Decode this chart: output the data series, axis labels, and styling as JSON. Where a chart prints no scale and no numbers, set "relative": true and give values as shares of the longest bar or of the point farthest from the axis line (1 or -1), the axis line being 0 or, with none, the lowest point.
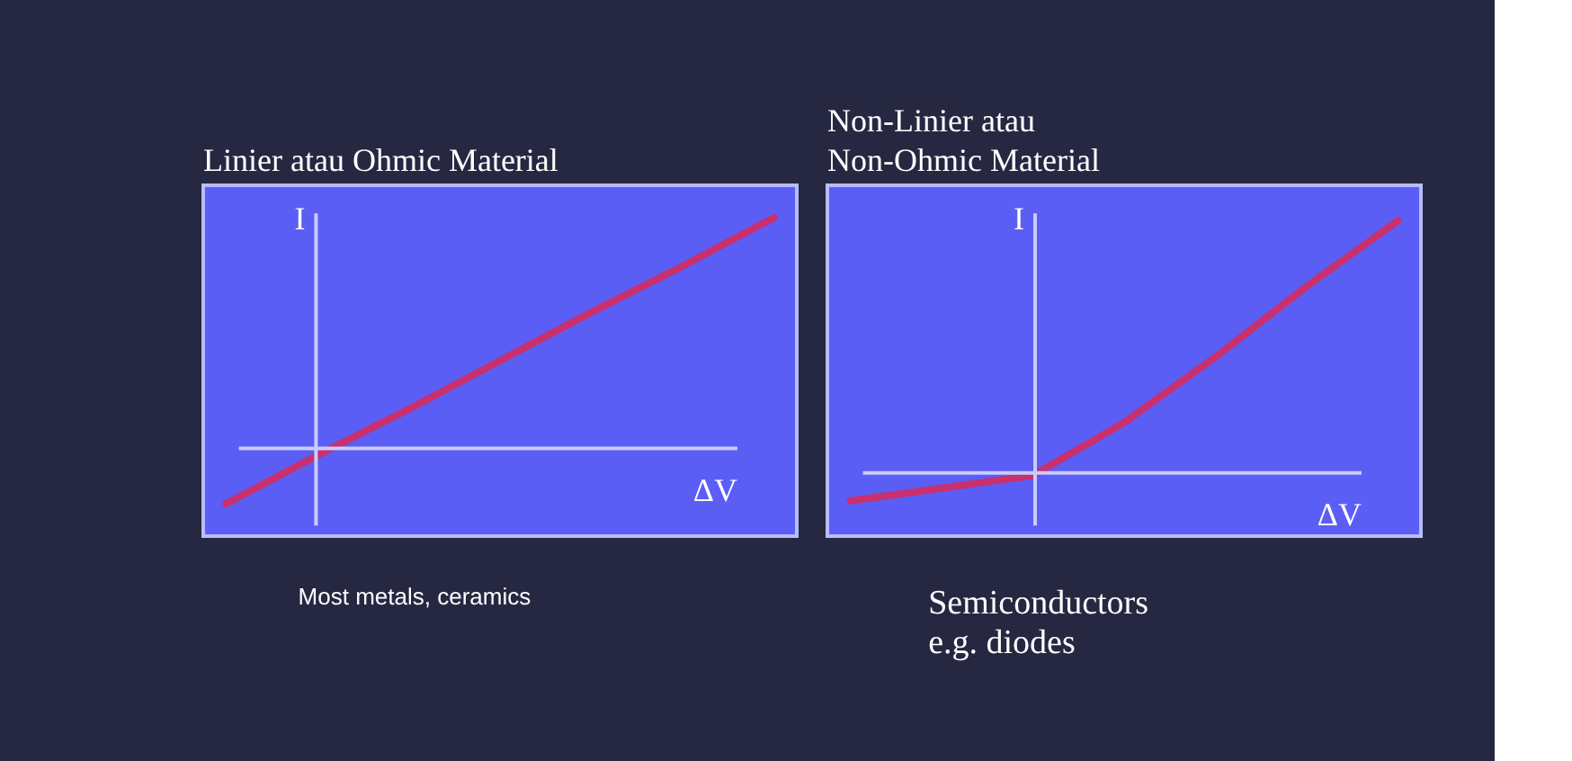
{
  "chart_data": [
    {
      "type": "line",
      "title": "Linier atau Ohmic Material",
      "xlabel": "ΔV",
      "ylabel": "I",
      "relative": true,
      "categories": [
        null,
        null,
        null,
        null,
        null,
        null,
        null
      ],
      "series": [
        {
          "color": "#c8306e",
          "values": [
            -0.24,
            -0.03,
            0.17,
            0.38,
            0.59,
            0.79,
            1.0
          ]
        }
      ],
      "ref_lines": [
        {
          "axis": "y",
          "value": 0,
          "color": "#c8ccff"
        }
      ],
      "annotations": [
        "Most metals, ceramics"
      ]
    },
    {
      "type": "line",
      "title": "Non-Linier atau\nNon-Ohmic Material",
      "xlabel": "ΔV",
      "ylabel": "I",
      "relative": true,
      "categories": [
        null,
        null,
        null,
        null,
        null,
        null,
        null
      ],
      "series": [
        {
          "color": "#c8306e",
          "values": [
            -0.11,
            -0.06,
            -0.01,
            0.2,
            0.46,
            0.74,
            1.0
          ]
        }
      ],
      "ref_lines": [
        {
          "axis": "y",
          "value": 0,
          "color": "#c8ccff"
        }
      ],
      "annotations": [
        "Semiconductors\ne.g. diodes"
      ]
    }
  ]
}
